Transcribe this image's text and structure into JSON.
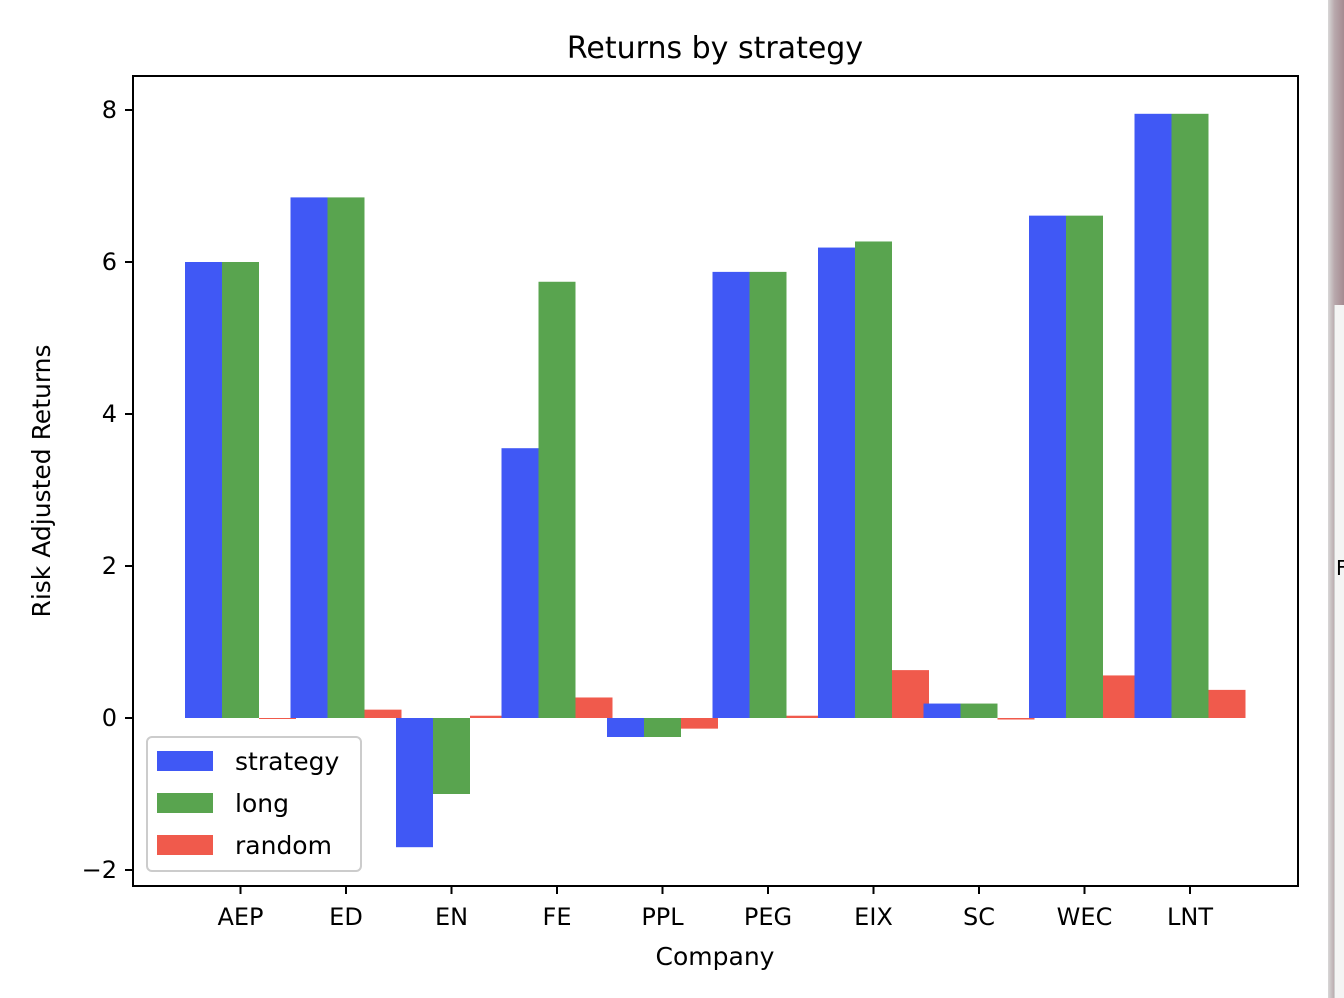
{
  "chart_data": {
    "type": "bar",
    "title": "Returns by strategy",
    "xlabel": "Company",
    "ylabel": "Risk Adjusted Returns",
    "categories": [
      "AEP",
      "ED",
      "EN",
      "FE",
      "PPL",
      "PEG",
      "EIX",
      "SC",
      "WEC",
      "LNT"
    ],
    "series": [
      {
        "name": "strategy",
        "color": "#4058f5",
        "values": [
          6.0,
          6.85,
          -1.7,
          3.55,
          -0.25,
          5.87,
          6.19,
          0.19,
          6.61,
          7.95
        ]
      },
      {
        "name": "long",
        "color": "#59a44f",
        "values": [
          6.0,
          6.85,
          -1.0,
          5.74,
          -0.25,
          5.87,
          6.27,
          0.19,
          6.61,
          7.95
        ]
      },
      {
        "name": "random",
        "color": "#f05a4c",
        "values": [
          0.0,
          0.11,
          0.03,
          0.27,
          -0.14,
          0.03,
          0.63,
          -0.02,
          0.56,
          0.37
        ]
      }
    ],
    "ylim": [
      -2.2,
      8.45
    ],
    "yticks": [
      -2,
      0,
      2,
      4,
      6,
      8
    ],
    "grid": false,
    "legend_position": "lower-left"
  },
  "edge": {
    "letter": "F"
  }
}
